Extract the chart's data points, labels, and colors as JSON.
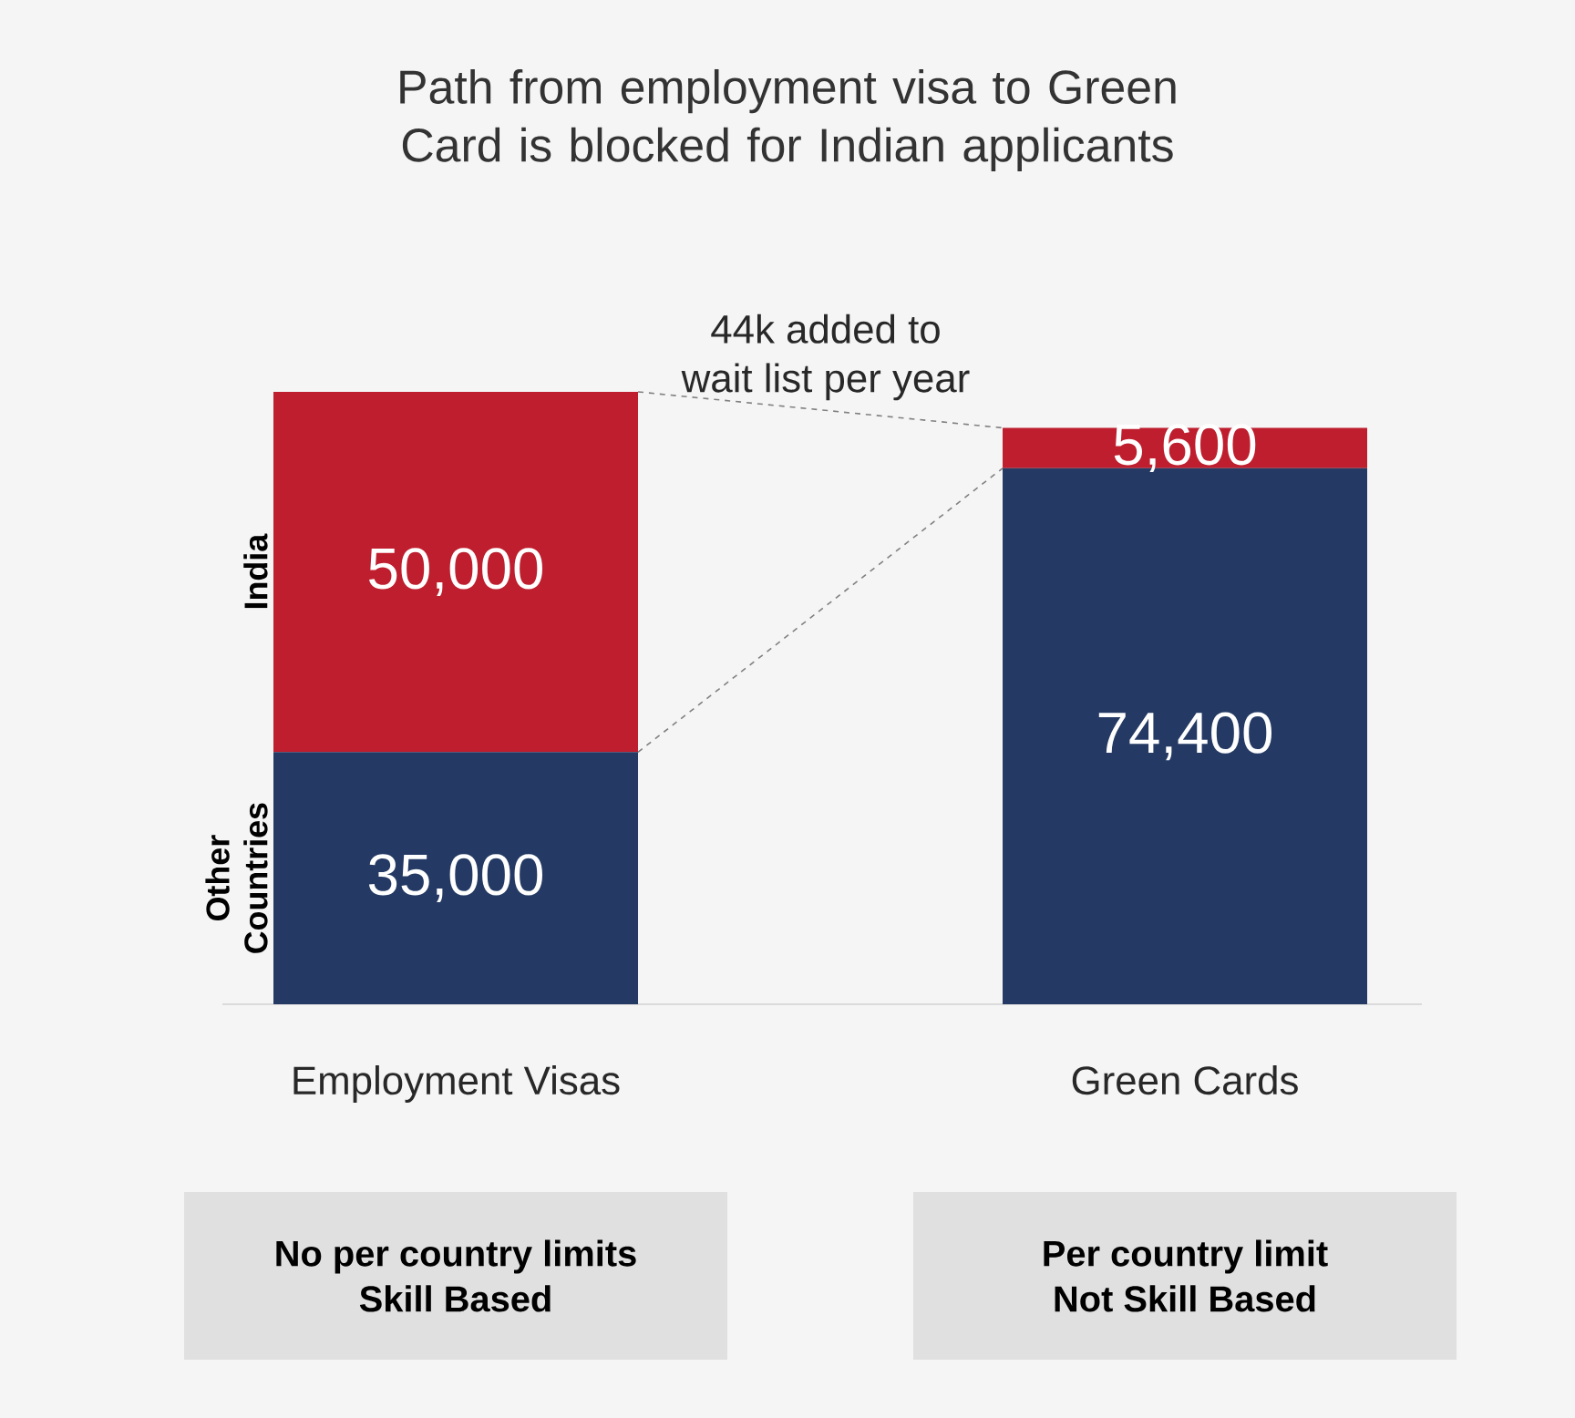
{
  "chart_data": {
    "type": "bar",
    "stacked": true,
    "title": "Path from employment visa to Green Card is blocked for Indian applicants",
    "categories": [
      "Employment Visas",
      "Green Cards"
    ],
    "series": [
      {
        "name": "Other Countries",
        "color": "#243a64",
        "values": [
          35000,
          74400
        ],
        "value_labels": [
          "35,000",
          "74,400"
        ]
      },
      {
        "name": "India",
        "color": "#be1e2d",
        "values": [
          50000,
          5600
        ],
        "value_labels": [
          "50,000",
          "5,600"
        ]
      }
    ],
    "annotations": [
      "44k added to",
      "wait list per year",
      "No per country limits",
      "Skill Based",
      "Per country limit",
      "Not Skill Based"
    ]
  }
}
